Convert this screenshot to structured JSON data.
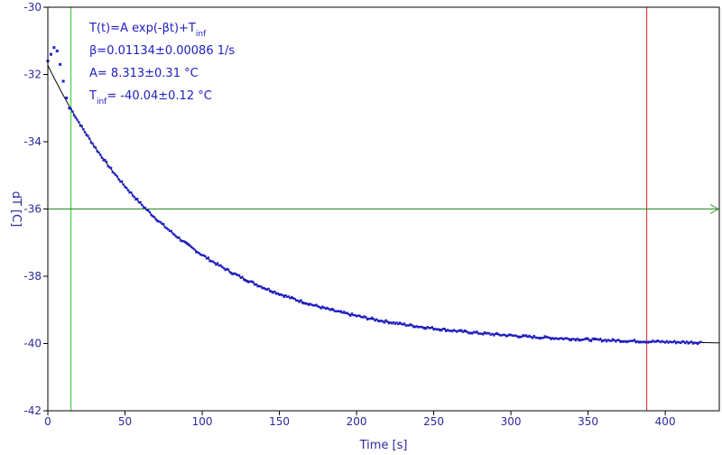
{
  "chart_data": {
    "type": "scatter",
    "xlabel": "Time [s]",
    "ylabel": "dT [C]",
    "xlim": [
      0,
      435
    ],
    "ylim": [
      -42,
      -30
    ],
    "x_ticks": [
      0,
      50,
      100,
      150,
      200,
      250,
      300,
      350,
      400
    ],
    "y_ticks": [
      -30,
      -32,
      -34,
      -36,
      -38,
      -40,
      -42
    ],
    "fit": {
      "model": "T(t)=A exp(-βt)+T_inf",
      "beta": 0.01134,
      "A": 8.313,
      "T_inf": -40.04,
      "x_range": [
        0,
        435
      ]
    },
    "data_series": {
      "x_start": 0,
      "x_end": 423,
      "step": 1,
      "initial_bump": [
        [
          0,
          -31.6
        ],
        [
          2,
          -31.4
        ],
        [
          4,
          -31.2
        ],
        [
          6,
          -31.3
        ],
        [
          8,
          -31.7
        ],
        [
          10,
          -32.2
        ],
        [
          12,
          -32.7
        ],
        [
          14,
          -33.0
        ]
      ]
    },
    "annotations": [
      {
        "main": "T(t)=A exp(-βt)+T",
        "sub": "inf",
        "after": ""
      },
      {
        "main": "β=0.01134±0.00086 1/s",
        "sub": "",
        "after": ""
      },
      {
        "main": "A= 8.313±0.31 °C",
        "sub": "",
        "after": ""
      },
      {
        "main": "T",
        "sub": "inf",
        "after": "= -40.04±0.12 °C"
      }
    ],
    "markers": {
      "green_vertical_x": 15,
      "red_vertical_x": 388,
      "horizontal_arrow_y": -36
    },
    "colors": {
      "data": "#1f1fc8",
      "fit": "#000000",
      "green": "#22cc22",
      "red": "#cc2222",
      "arrow": "#228b22",
      "axis": "#000000",
      "tick_text": "#2a2a9a"
    },
    "grid": false
  }
}
